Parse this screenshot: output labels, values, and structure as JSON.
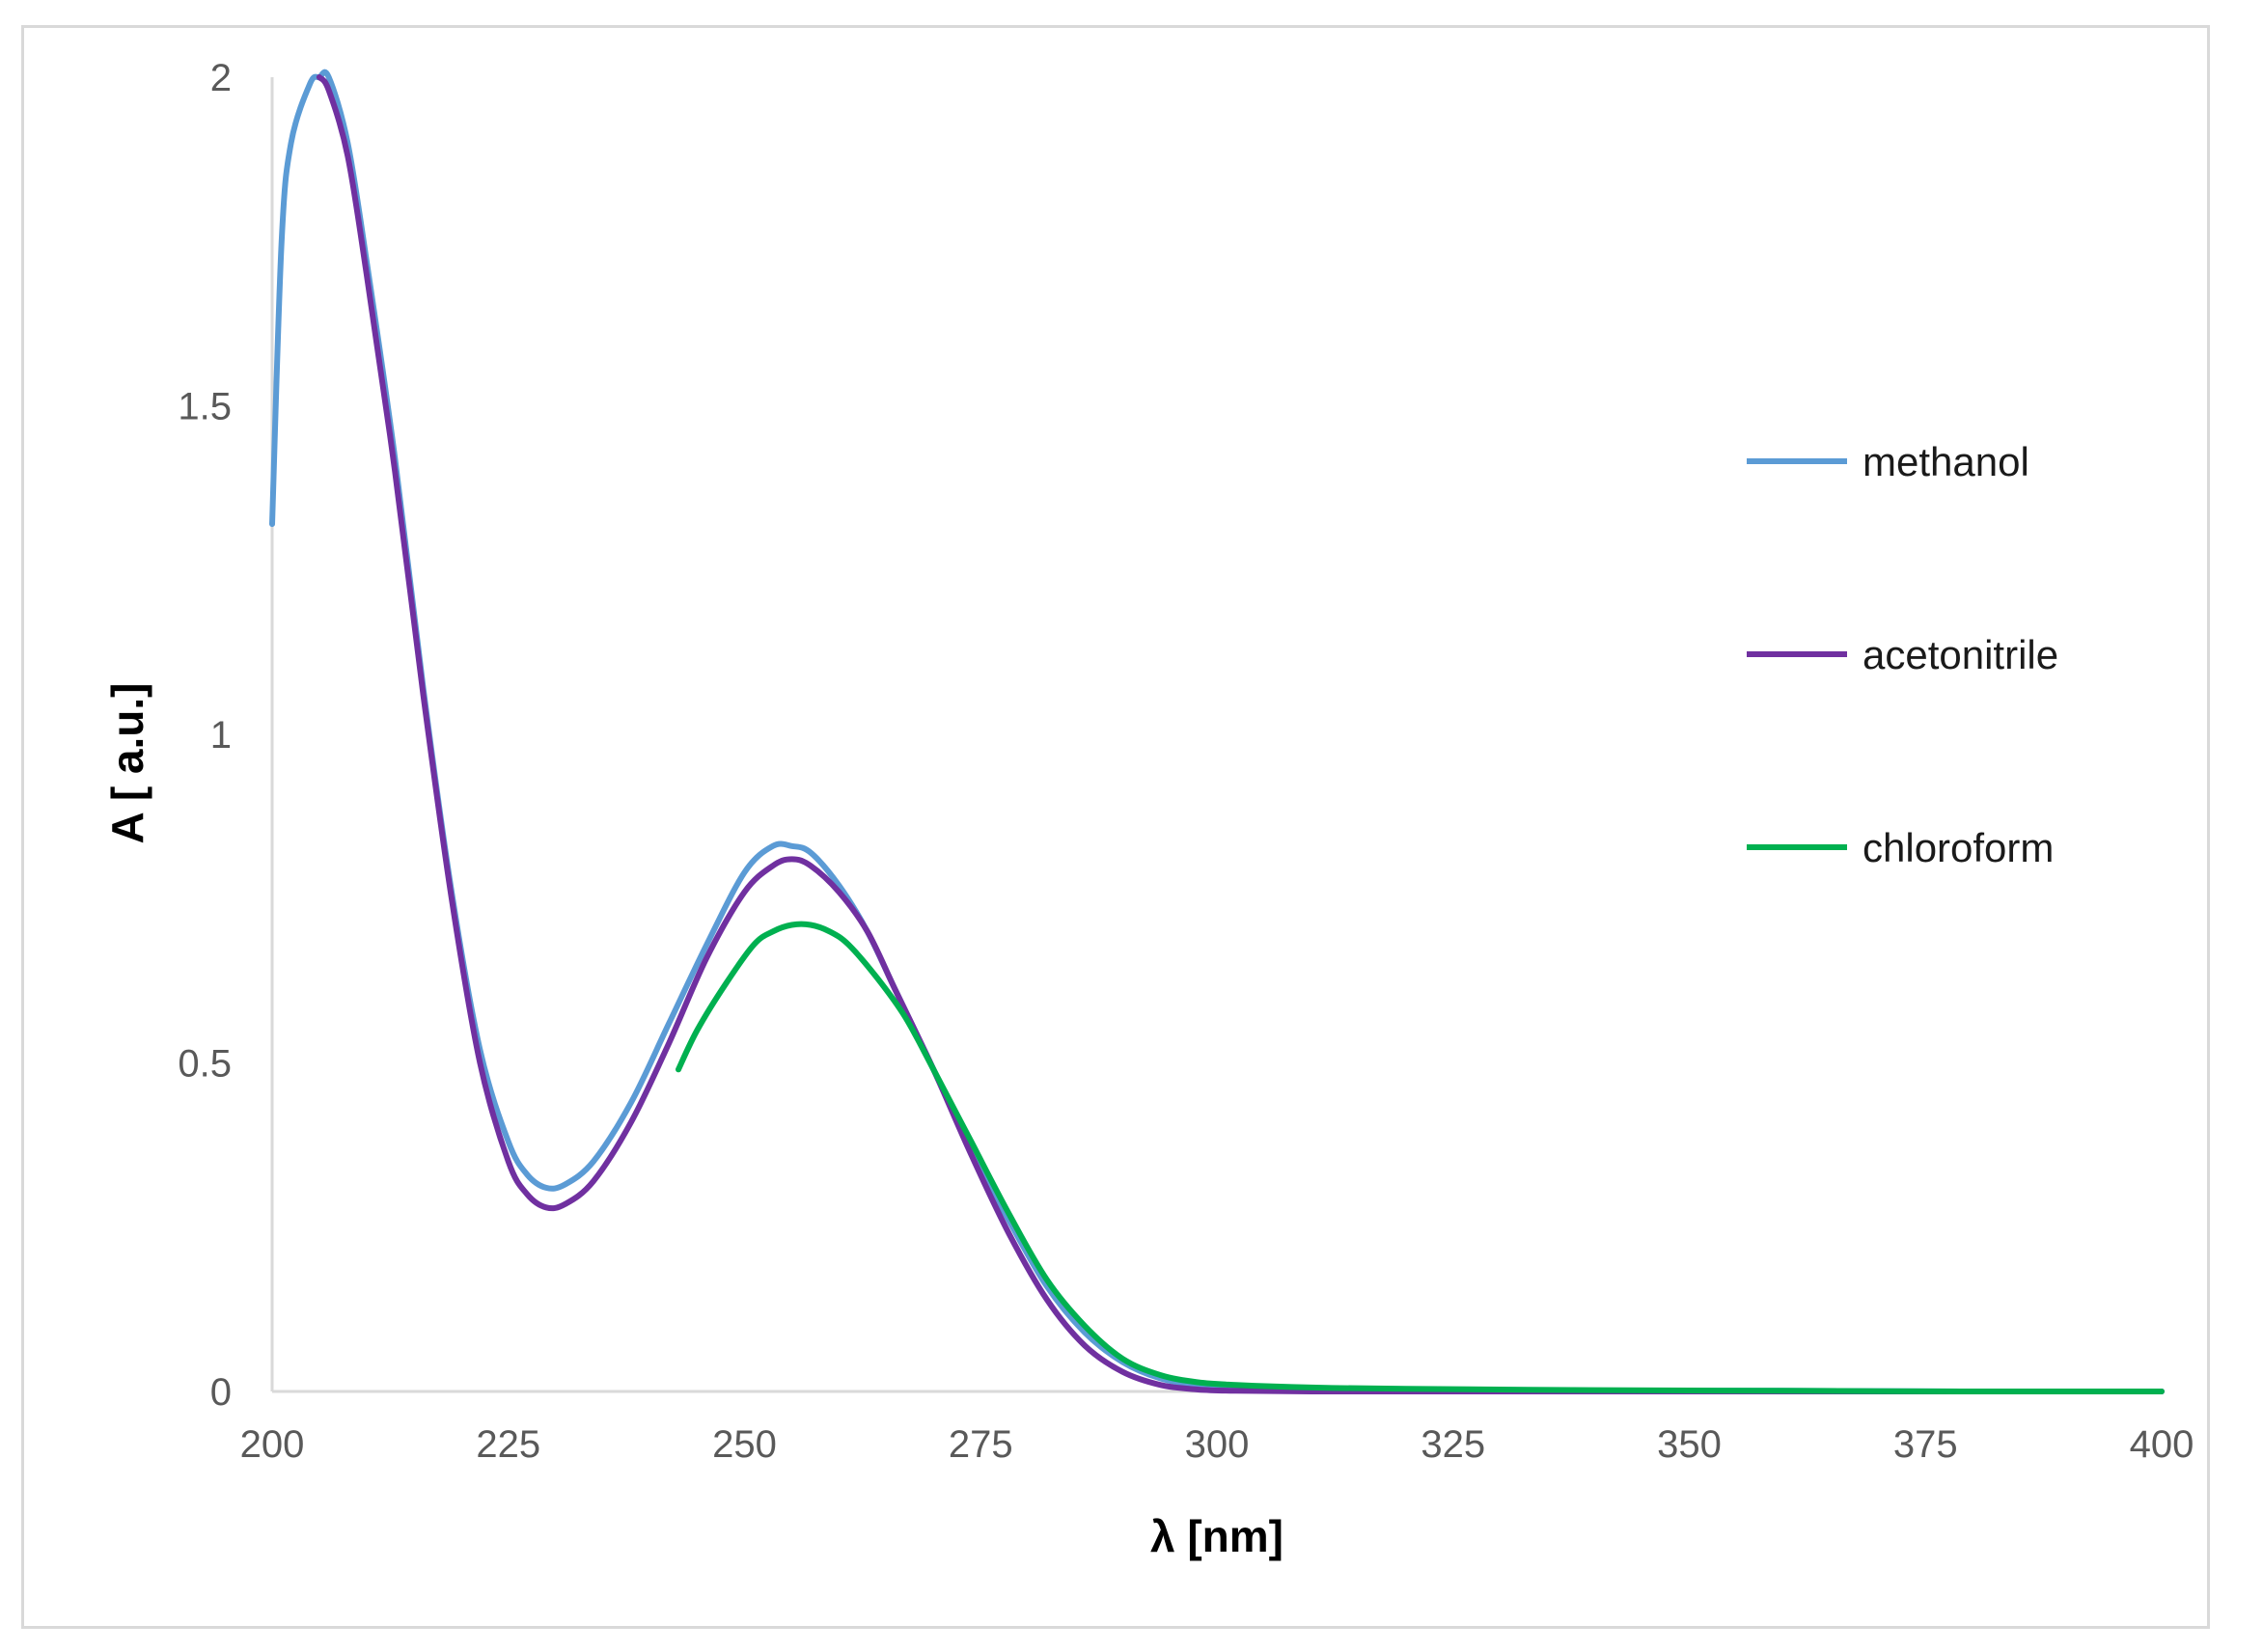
{
  "chart_data": {
    "type": "line",
    "title": "",
    "xlabel": "λ [nm]",
    "ylabel": "A [ a.u.]",
    "xlim": [
      200,
      400
    ],
    "ylim": [
      0,
      2
    ],
    "x_ticks": [
      "200",
      "225",
      "250",
      "275",
      "300",
      "325",
      "350",
      "375",
      "400"
    ],
    "y_ticks": [
      "0",
      "0.5",
      "1",
      "1.5",
      "2"
    ],
    "grid": false,
    "legend_position": "right",
    "series": [
      {
        "name": "methanol",
        "color": "#5b9bd5",
        "x": [
          200,
          201,
          202,
          204,
          205,
          206,
          208,
          210,
          213,
          216,
          219,
          222,
          225,
          227,
          229,
          231,
          234,
          238,
          242,
          246,
          250,
          253,
          255,
          257,
          260,
          263,
          266,
          270,
          274,
          278,
          282,
          286,
          290,
          294,
          298,
          302,
          310,
          320,
          340,
          360,
          380,
          400
        ],
        "y": [
          1.32,
          1.75,
          1.9,
          1.99,
          2.0,
          2.0,
          1.9,
          1.72,
          1.42,
          1.07,
          0.76,
          0.52,
          0.38,
          0.33,
          0.31,
          0.315,
          0.35,
          0.44,
          0.56,
          0.68,
          0.79,
          0.83,
          0.83,
          0.82,
          0.77,
          0.7,
          0.61,
          0.49,
          0.37,
          0.26,
          0.16,
          0.09,
          0.045,
          0.02,
          0.01,
          0.006,
          0.003,
          0.002,
          0.001,
          0.001,
          0.0,
          0.0
        ]
      },
      {
        "name": "acetonitrile",
        "color": "#7030a0",
        "x": [
          205,
          206,
          208,
          210,
          213,
          216,
          219,
          222,
          225,
          227,
          229,
          231,
          234,
          238,
          242,
          246,
          250,
          253,
          255,
          257,
          260,
          263,
          266,
          270,
          274,
          278,
          282,
          286,
          290,
          294,
          298,
          302,
          310,
          320,
          340,
          360,
          380,
          400
        ],
        "y": [
          2.0,
          1.98,
          1.88,
          1.7,
          1.4,
          1.06,
          0.75,
          0.5,
          0.35,
          0.3,
          0.28,
          0.285,
          0.32,
          0.41,
          0.53,
          0.66,
          0.76,
          0.8,
          0.81,
          0.8,
          0.76,
          0.7,
          0.61,
          0.49,
          0.36,
          0.24,
          0.14,
          0.07,
          0.03,
          0.01,
          0.003,
          0.001,
          0.0,
          0.0,
          0.0,
          0.0,
          0.0,
          0.0
        ]
      },
      {
        "name": "chloroform",
        "color": "#00b050",
        "x": [
          243,
          245,
          248,
          251,
          253,
          255,
          257,
          259,
          261,
          264,
          267,
          270,
          274,
          278,
          282,
          286,
          290,
          294,
          298,
          302,
          310,
          320,
          340,
          360,
          380,
          400
        ],
        "y": [
          0.49,
          0.55,
          0.62,
          0.68,
          0.7,
          0.71,
          0.71,
          0.7,
          0.68,
          0.63,
          0.57,
          0.49,
          0.38,
          0.27,
          0.17,
          0.1,
          0.05,
          0.025,
          0.014,
          0.01,
          0.006,
          0.004,
          0.002,
          0.001,
          0.0,
          0.0
        ]
      }
    ]
  }
}
